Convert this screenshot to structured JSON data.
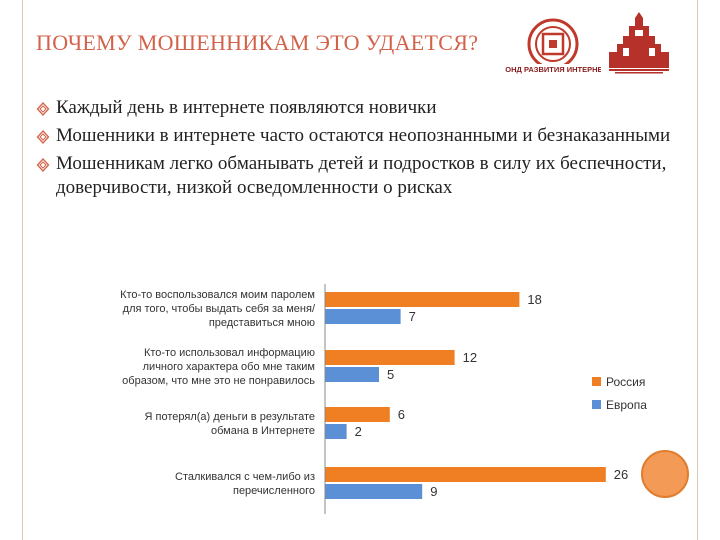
{
  "slide": {
    "title": "ПОЧЕМУ МОШЕННИКАМ ЭТО УДАЕТСЯ?",
    "logo_left_text": "ФОНД РАЗВИТИЯ ИНТЕРНЕТ",
    "bullets": [
      "Каждый день в интернете появляются новички",
      "Мошенники в интернете часто остаются неопознанными и безнаказанными",
      "Мошенникам легко обманывать детей и подростков в силу их беспечности, доверчивости, низкой осведомленности о рисках"
    ]
  },
  "colors": {
    "title": "#d2624a",
    "russia": "#f07e22",
    "europe": "#5b8fd6",
    "accent_circle": "#f39a56"
  },
  "chart_data": {
    "type": "bar",
    "orientation": "horizontal",
    "categories": [
      [
        "Кто-то воспользовался моим паролем",
        "для того, чтобы выдать себя за меня/",
        "представиться мною"
      ],
      [
        "Кто-то использовал информацию",
        "личного характера обо мне таким",
        "образом, что мне это не понравилось"
      ],
      [
        "Я потерял(а) деньги в результате",
        "обмана в Интернете"
      ],
      [
        "Сталкивался с чем-либо из",
        "перечисленного"
      ]
    ],
    "series": [
      {
        "name": "Россия",
        "values": [
          18,
          12,
          6,
          26
        ]
      },
      {
        "name": "Европа",
        "values": [
          7,
          5,
          2,
          9
        ]
      }
    ],
    "xlim": [
      0,
      30
    ],
    "legend": "right"
  }
}
